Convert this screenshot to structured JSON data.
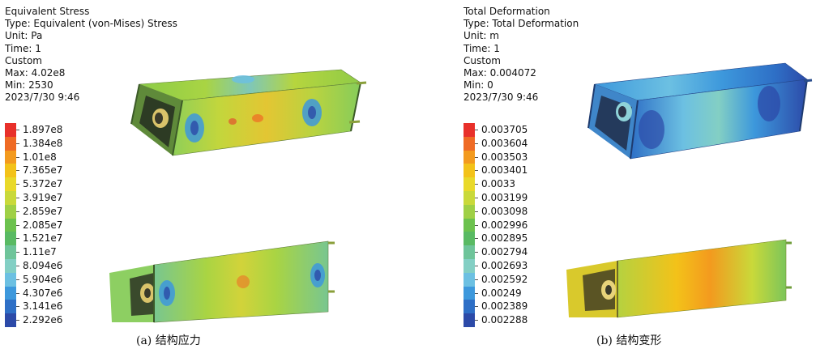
{
  "panels": [
    {
      "header": {
        "title": "Equivalent Stress",
        "type_line": "Type: Equivalent (von-Mises) Stress",
        "unit_line": "Unit: Pa",
        "time_line": "Time: 1",
        "custom_line": "Custom",
        "max_line": "Max: 4.02e8",
        "min_line": "Min: 2530",
        "date_line": "2023/7/30 9:46"
      },
      "legend": [
        {
          "label": "1.897e8",
          "color": "#e8302a"
        },
        {
          "label": "1.384e8",
          "color": "#ef6a24"
        },
        {
          "label": "1.01e8",
          "color": "#f39a1e"
        },
        {
          "label": "7.365e7",
          "color": "#f3c219"
        },
        {
          "label": "5.372e7",
          "color": "#e9d92a"
        },
        {
          "label": "3.919e7",
          "color": "#c9d93a"
        },
        {
          "label": "2.859e7",
          "color": "#9fd046"
        },
        {
          "label": "2.085e7",
          "color": "#6cc24e"
        },
        {
          "label": "1.521e7",
          "color": "#59ba63"
        },
        {
          "label": "1.11e7",
          "color": "#6ec49a"
        },
        {
          "label": "8.094e6",
          "color": "#83cfc4"
        },
        {
          "label": "5.904e6",
          "color": "#6cc0e2"
        },
        {
          "label": "4.307e6",
          "color": "#3d98dc"
        },
        {
          "label": "3.141e6",
          "color": "#2e6fc6"
        },
        {
          "label": "2.292e6",
          "color": "#2c4aa8"
        }
      ],
      "caption": "(a) 结构应力"
    },
    {
      "header": {
        "title": "Total Deformation",
        "type_line": "Type: Total Deformation",
        "unit_line": "Unit: m",
        "time_line": "Time: 1",
        "custom_line": "Custom",
        "max_line": "Max: 0.004072",
        "min_line": "Min: 0",
        "date_line": "2023/7/30 9:46"
      },
      "legend": [
        {
          "label": "0.003705",
          "color": "#e8302a"
        },
        {
          "label": "0.003604",
          "color": "#ef6a24"
        },
        {
          "label": "0.003503",
          "color": "#f39a1e"
        },
        {
          "label": "0.003401",
          "color": "#f3c219"
        },
        {
          "label": "0.0033",
          "color": "#e9d92a"
        },
        {
          "label": "0.003199",
          "color": "#c9d93a"
        },
        {
          "label": "0.003098",
          "color": "#9fd046"
        },
        {
          "label": "0.002996",
          "color": "#6cc24e"
        },
        {
          "label": "0.002895",
          "color": "#59ba63"
        },
        {
          "label": "0.002794",
          "color": "#6ec49a"
        },
        {
          "label": "0.002693",
          "color": "#83cfc4"
        },
        {
          "label": "0.002592",
          "color": "#6cc0e2"
        },
        {
          "label": "0.00249",
          "color": "#3d98dc"
        },
        {
          "label": "0.002389",
          "color": "#2e6fc6"
        },
        {
          "label": "0.002288",
          "color": "#2c4aa8"
        }
      ],
      "caption": "(b) 结构变形"
    }
  ]
}
